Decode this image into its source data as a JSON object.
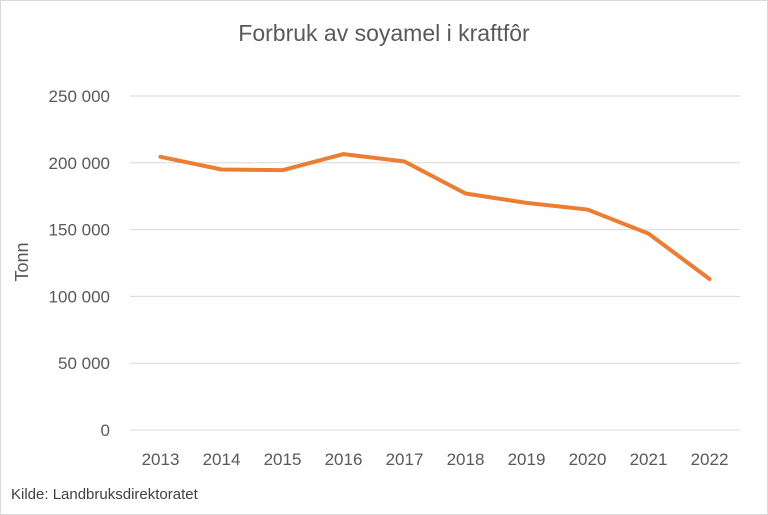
{
  "chart_data": {
    "type": "line",
    "title": "Forbruk av soyamel i kraftfôr",
    "xlabel": "",
    "ylabel": "Tonn",
    "categories": [
      "2013",
      "2014",
      "2015",
      "2016",
      "2017",
      "2018",
      "2019",
      "2020",
      "2021",
      "2022"
    ],
    "series": [
      {
        "values": [
          204500,
          195000,
          194500,
          206500,
          201000,
          177000,
          170000,
          165000,
          147000,
          113000
        ],
        "color": "#ED7D31"
      }
    ],
    "ylim": [
      0,
      250000
    ],
    "yticks": [
      0,
      50000,
      100000,
      150000,
      200000,
      250000
    ],
    "ytick_labels": [
      "0",
      "50 000",
      "100 000",
      "150 000",
      "200 000",
      "250 000"
    ],
    "grid": true,
    "gridline_color": "#d9d9d9",
    "legend": "none"
  },
  "source_note": "Kilde: Landbruksdirektoratet"
}
